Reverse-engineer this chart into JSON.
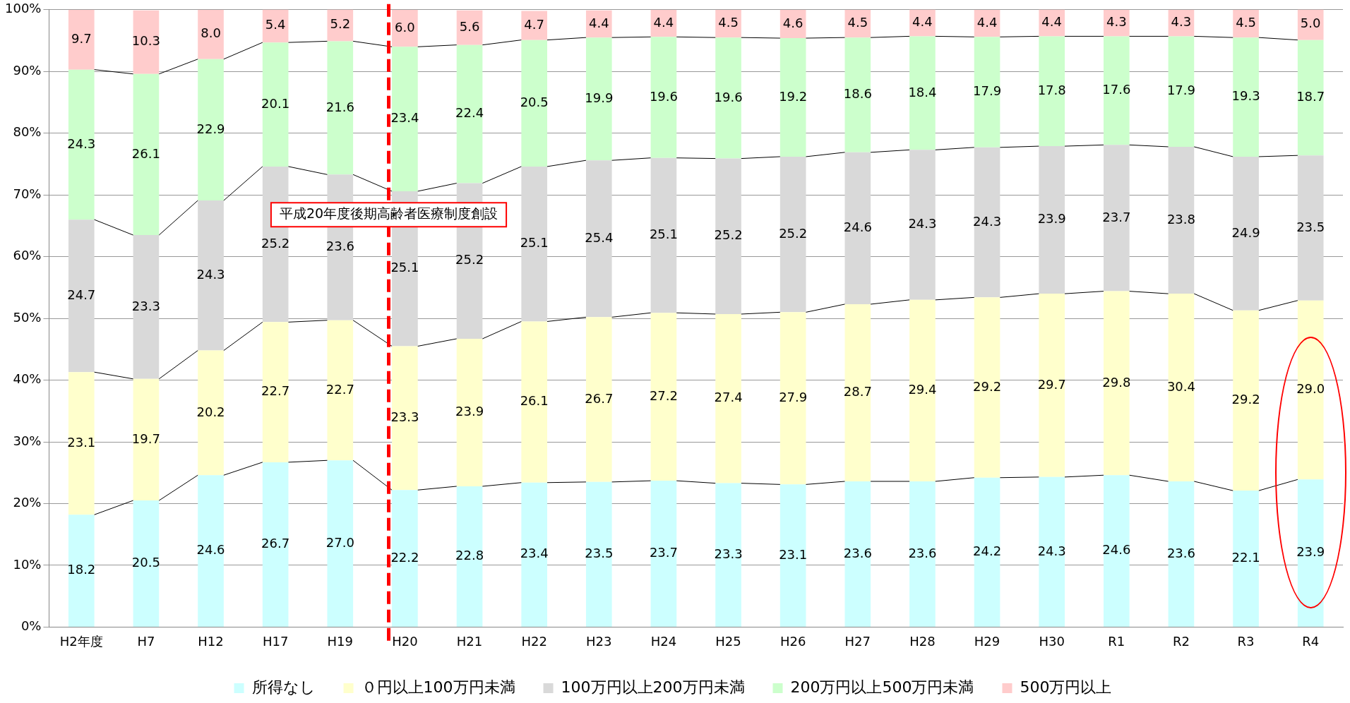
{
  "chart_data": {
    "type": "bar",
    "stacked": true,
    "categories": [
      "H2年度",
      "H7",
      "H12",
      "H17",
      "H19",
      "H20",
      "H21",
      "H22",
      "H23",
      "H24",
      "H25",
      "H26",
      "H27",
      "H28",
      "H29",
      "H30",
      "R1",
      "R2",
      "R3",
      "R4"
    ],
    "series": [
      {
        "name": "所得なし",
        "color": "#ccffff",
        "values": [
          18.2,
          20.5,
          24.6,
          26.7,
          27.0,
          22.2,
          22.8,
          23.4,
          23.5,
          23.7,
          23.3,
          23.1,
          23.6,
          23.6,
          24.2,
          24.3,
          24.6,
          23.6,
          22.1,
          23.9
        ],
        "value_labels": [
          "18.2",
          "20.5",
          "24.6",
          "26.7",
          "27.0",
          "22.2",
          "22.8",
          "23.4",
          "23.5",
          "23.7",
          "23.3",
          "23.1",
          "23.6",
          "23.6",
          "24.2",
          "24.3",
          "24.6",
          "23.6",
          "22.1",
          "23.9"
        ]
      },
      {
        "name": "０円以上100万円未満",
        "color": "#ffffcc",
        "values": [
          23.1,
          19.7,
          20.2,
          22.7,
          22.7,
          23.3,
          23.9,
          26.1,
          26.7,
          27.2,
          27.4,
          27.9,
          28.7,
          29.4,
          29.2,
          29.7,
          29.8,
          30.4,
          29.2,
          29.0
        ],
        "value_labels": [
          "23.1",
          "19.7",
          "20.2",
          "22.7",
          "22.7",
          "23.3",
          "23.9",
          "26.1",
          "26.7",
          "27.2",
          "27.4",
          "27.9",
          "28.7",
          "29.4",
          "29.2",
          "29.7",
          "29.8",
          "30.4",
          "29.2",
          "29.0"
        ]
      },
      {
        "name": "100万円以上200万円未満",
        "color": "#d9d9d9",
        "values": [
          24.7,
          23.3,
          24.3,
          25.2,
          23.6,
          25.1,
          25.2,
          25.1,
          25.4,
          25.1,
          25.2,
          25.2,
          24.6,
          24.3,
          24.3,
          23.9,
          23.7,
          23.8,
          24.9,
          23.5
        ],
        "value_labels": [
          "24.7",
          "23.3",
          "24.3",
          "25.2",
          "23.6",
          "25.1",
          "25.2",
          "25.1",
          "25.4",
          "25.1",
          "25.2",
          "25.2",
          "24.6",
          "24.3",
          "24.3",
          "23.9",
          "23.7",
          "23.8",
          "24.9",
          "23.5"
        ]
      },
      {
        "name": "200万円以上500万円未満",
        "color": "#ccffcc",
        "values": [
          24.3,
          26.1,
          22.9,
          20.1,
          21.6,
          23.4,
          22.4,
          20.5,
          19.9,
          19.6,
          19.6,
          19.2,
          18.6,
          18.4,
          17.9,
          17.8,
          17.6,
          17.9,
          19.3,
          18.7
        ],
        "value_labels": [
          "24.3",
          "26.1",
          "22.9",
          "20.1",
          "21.6",
          "23.4",
          "22.4",
          "20.5",
          "19.9",
          "19.6",
          "19.6",
          "19.2",
          "18.6",
          "18.4",
          "17.9",
          "17.8",
          "17.6",
          "17.9",
          "19.3",
          "18.7"
        ]
      },
      {
        "name": "500万円以上",
        "color": "#ffcccc",
        "values": [
          9.7,
          10.3,
          8.0,
          5.4,
          5.2,
          6.0,
          5.6,
          4.7,
          4.4,
          4.4,
          4.5,
          4.6,
          4.5,
          4.4,
          4.4,
          4.4,
          4.3,
          4.3,
          4.5,
          5.0
        ],
        "value_labels": [
          "9.7",
          "10.3",
          "8.0",
          "5.4",
          "5.2",
          "6.0",
          "5.6",
          "4.7",
          "4.4",
          "4.4",
          "4.5",
          "4.6",
          "4.5",
          "4.4",
          "4.4",
          "4.4",
          "4.3",
          "4.3",
          "4.5",
          "5.0"
        ]
      }
    ],
    "ylim": [
      0,
      100
    ],
    "yticks": [
      {
        "value": 0,
        "label": "0%"
      },
      {
        "value": 10,
        "label": "10%"
      },
      {
        "value": 20,
        "label": "20%"
      },
      {
        "value": 30,
        "label": "30%"
      },
      {
        "value": 40,
        "label": "40%"
      },
      {
        "value": 50,
        "label": "50%"
      },
      {
        "value": 60,
        "label": "60%"
      },
      {
        "value": 70,
        "label": "70%"
      },
      {
        "value": 80,
        "label": "80%"
      },
      {
        "value": 90,
        "label": "90%"
      },
      {
        "value": 100,
        "label": "100%"
      }
    ],
    "grid": "y",
    "legend": "bottom",
    "ref_lines": [
      {
        "axis": "x",
        "value": "H20",
        "label": "平成20年度後期高齢者医療制度創設",
        "color": "#ff0000",
        "line_style": "dashed"
      }
    ]
  }
}
